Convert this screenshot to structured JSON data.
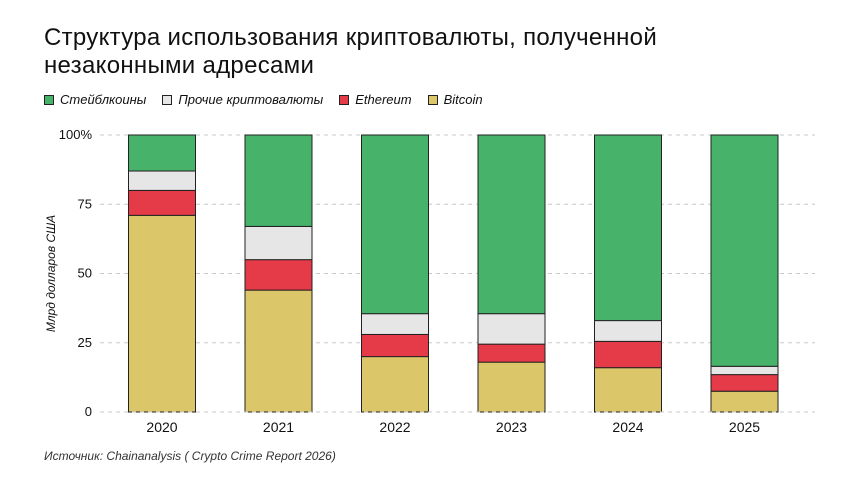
{
  "title": "Структура использования криптовалюты, полученной незаконными адресами",
  "source": "Источник: Chainanalysis ( Crypto Crime Report 2026)",
  "chart_data": {
    "type": "bar",
    "stacked": true,
    "ylabel": "Млрд долларов США",
    "ylim": [
      0,
      100
    ],
    "yticks": [
      0,
      25,
      50,
      75,
      100
    ],
    "ytick_labels": [
      "0",
      "25",
      "50",
      "75",
      "100%"
    ],
    "categories": [
      "2020",
      "2021",
      "2022",
      "2023",
      "2024",
      "2025"
    ],
    "legend_placement": "top-left",
    "grid": true,
    "series": [
      {
        "name": "Bitcoin",
        "color": "#dcc66a",
        "values": [
          71,
          44,
          20,
          18,
          16,
          7.5
        ]
      },
      {
        "name": "Ethereum",
        "color": "#e53a47",
        "values": [
          9,
          11,
          8,
          6.5,
          9.5,
          6
        ]
      },
      {
        "name": "Прочие криптовалюты",
        "color": "#e6e6e6",
        "values": [
          7,
          12,
          7.5,
          11,
          7.5,
          3
        ]
      },
      {
        "name": "Стейблкоины",
        "color": "#47b26a",
        "values": [
          13,
          33,
          64.5,
          64.5,
          67,
          83.5
        ]
      }
    ],
    "legend_order": [
      "Стейблкоины",
      "Прочие криптовалюты",
      "Ethereum",
      "Bitcoin"
    ]
  }
}
